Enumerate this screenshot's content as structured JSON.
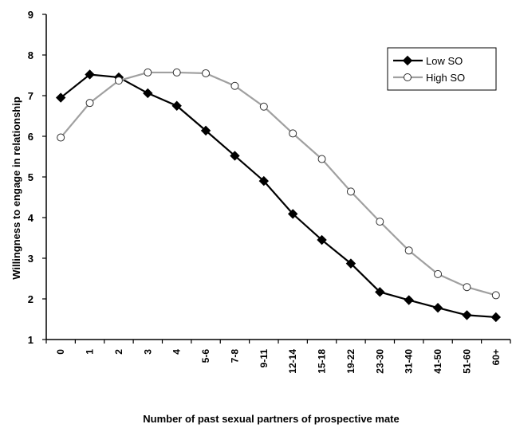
{
  "chart_data": {
    "type": "line",
    "categories": [
      "0",
      "1",
      "2",
      "3",
      "4",
      "5-6",
      "7-8",
      "9-11",
      "12-14",
      "15-18",
      "19-22",
      "23-30",
      "31-40",
      "41-50",
      "51-60",
      "60+"
    ],
    "series": [
      {
        "name": "Low SO",
        "color": "#000000",
        "marker": "filled-diamond",
        "values": [
          6.95,
          7.52,
          7.45,
          7.06,
          6.75,
          6.14,
          5.52,
          4.9,
          4.09,
          3.45,
          2.87,
          2.17,
          1.97,
          1.78,
          1.6,
          1.55
        ]
      },
      {
        "name": "High SO",
        "color": "#a0a0a0",
        "marker": "open-circle",
        "values": [
          5.97,
          6.82,
          7.37,
          7.57,
          7.57,
          7.55,
          7.24,
          6.73,
          6.07,
          5.44,
          4.64,
          3.9,
          3.19,
          2.61,
          2.29,
          2.09
        ]
      }
    ],
    "xlabel": "Number of past sexual partners of prospective mate",
    "ylabel": "Willingness to engage in relationship",
    "ylim": [
      1,
      9
    ],
    "yticks": [
      "1",
      "2",
      "3",
      "4",
      "5",
      "6",
      "7",
      "8",
      "9"
    ],
    "grid": false,
    "legend_position": "top-right"
  }
}
